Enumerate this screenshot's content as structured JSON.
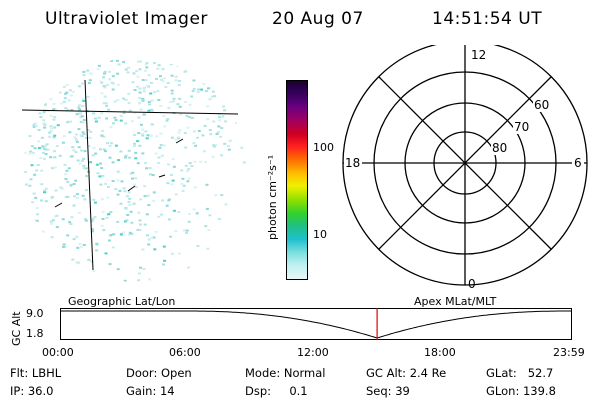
{
  "header": {
    "instrument": "Ultraviolet Imager",
    "date": "20 Aug 07",
    "time": "14:51:54 UT"
  },
  "colorbar": {
    "label": "photon cm⁻²s⁻¹",
    "ticks": [
      "100",
      "10"
    ],
    "scale": "log",
    "colors": [
      "#1a0030",
      "#3a0060",
      "#6a0080",
      "#a00060",
      "#d00020",
      "#ff2020",
      "#ff7000",
      "#ffc000",
      "#f0f000",
      "#90e000",
      "#30d030",
      "#20c080",
      "#20c0d0",
      "#80e0e0",
      "#c0f0f0",
      "#e8f8f8"
    ]
  },
  "polar": {
    "mlt_labels": {
      "top": "12",
      "left": "18",
      "right": "6",
      "bottom": "0"
    },
    "lat_labels": [
      "60",
      "70",
      "80"
    ]
  },
  "timeline": {
    "left_title": "Geographic Lat/Lon",
    "right_title": "Apex MLat/MLT",
    "y_label": "GC Alt",
    "y_max": "9.0",
    "y_min": "1.8",
    "x_ticks": [
      "00:00",
      "06:00",
      "12:00",
      "18:00",
      "23:59"
    ],
    "marker_color": "#e00000"
  },
  "info": {
    "filter_label": "Flt:",
    "filter_value": "LBHL",
    "ip_label": "IP:",
    "ip_value": "36.0",
    "door_label": "Door:",
    "door_value": "Open",
    "gain_label": "Gain:",
    "gain_value": "14",
    "mode_label": "Mode:",
    "mode_value": "Normal",
    "dsp_label": "Dsp:",
    "dsp_value": "0.1",
    "gcalt_label": "GC Alt:",
    "gcalt_value": "2.4 Re",
    "seq_label": "Seq:",
    "seq_value": "39",
    "glat_label": "GLat:",
    "glat_value": "52.7",
    "glon_label": "GLon:",
    "glon_value": "139.8"
  }
}
